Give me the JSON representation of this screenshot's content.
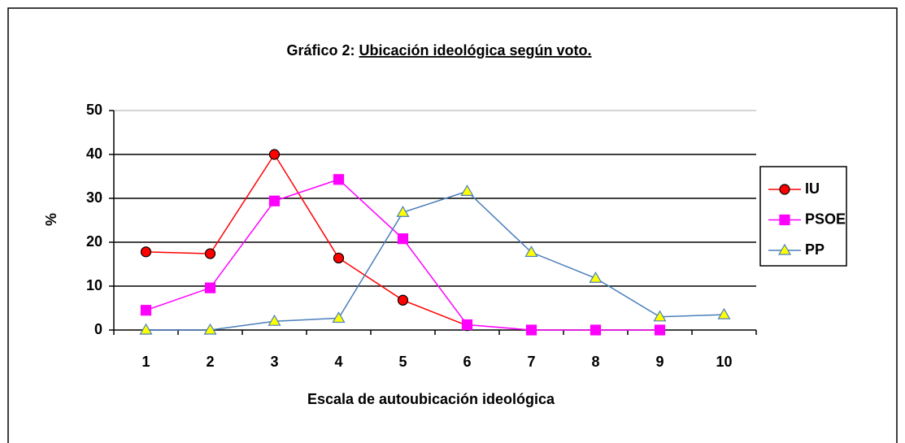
{
  "chart_data": {
    "type": "line",
    "title": [
      "Gráfico 2:",
      "Ubicación ideológica según voto."
    ],
    "x_label": "Escala de autoubicación ideológica",
    "y_label": "%",
    "categories": [
      "1",
      "2",
      "3",
      "4",
      "5",
      "6",
      "7",
      "8",
      "9",
      "10"
    ],
    "series": [
      {
        "name": "IU",
        "color": "#ff0000",
        "marker": "circle",
        "values": [
          17.8,
          17.4,
          40,
          16.4,
          6.8,
          1,
          null,
          null,
          null,
          null
        ]
      },
      {
        "name": "PSOE",
        "color": "#ff00ff",
        "marker": "square",
        "values": [
          4.5,
          9.6,
          29.4,
          34.3,
          20.8,
          1.2,
          0,
          0,
          0,
          null
        ]
      },
      {
        "name": "PP",
        "color": "#4a7ebb",
        "marker": "triangle",
        "values": [
          0,
          0,
          2,
          2.7,
          26.8,
          31.6,
          17.7,
          11.8,
          3,
          3.5
        ]
      }
    ],
    "ylim": [
      0,
      50
    ],
    "yticks": [
      0,
      10,
      20,
      30,
      40,
      50
    ],
    "grid": true,
    "legend": "right"
  }
}
